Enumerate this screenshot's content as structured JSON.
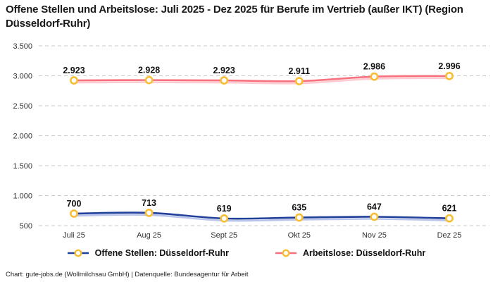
{
  "title": "Offene Stellen und Arbeitslose: Juli 2025 - Dez 2025 für Berufe im Vertrieb (außer IKT) (Region Düsseldorf-Ruhr)",
  "footer": "Chart: gute-jobs.de (Wollmilchsau GmbH) | Datenquelle: Bundesagentur für Arbeit",
  "colors": {
    "open_positions_line": "#21409A",
    "open_positions_shadow": "#B3BFE9",
    "unemployed_line": "#F8717F",
    "unemployed_shadow": "#FCC6CD",
    "marker_ring": "#F7BE33",
    "marker_fill": "#FFFFFF",
    "grid": "#C8C8C8",
    "text": "#1a1a1a"
  },
  "chart_data": {
    "type": "line",
    "categories": [
      "Juli 25",
      "Aug 25",
      "Sept 25",
      "Okt 25",
      "Nov 25",
      "Dez 25"
    ],
    "series": [
      {
        "name": "Offene Stellen: Düsseldorf-Ruhr",
        "values": [
          700,
          713,
          619,
          635,
          647,
          621
        ],
        "labels": [
          "700",
          "713",
          "619",
          "635",
          "647",
          "621"
        ],
        "color": "#21409A",
        "shadow_color": "#B3BFE9"
      },
      {
        "name": "Arbeitslose: Düsseldorf-Ruhr",
        "values": [
          2923,
          2928,
          2923,
          2911,
          2986,
          2996
        ],
        "labels": [
          "2.923",
          "2.928",
          "2.923",
          "2.911",
          "2.986",
          "2.996"
        ],
        "color": "#F8717F",
        "shadow_color": "#FCC6CD"
      }
    ],
    "title": "Offene Stellen und Arbeitslose: Juli 2025 - Dez 2025 für Berufe im Vertrieb (außer IKT) (Region Düsseldorf-Ruhr)",
    "xlabel": "",
    "ylabel": "",
    "ylim": [
      500,
      3500
    ],
    "yticks": [
      {
        "value": 500,
        "label": "500"
      },
      {
        "value": 1000,
        "label": "1.000"
      },
      {
        "value": 1500,
        "label": "1.500"
      },
      {
        "value": 2000,
        "label": "2.000"
      },
      {
        "value": 2500,
        "label": "2.500"
      },
      {
        "value": 3000,
        "label": "3.000"
      },
      {
        "value": 3500,
        "label": "3.500"
      }
    ],
    "grid": true,
    "grid_style": "dashed",
    "legend_position": "bottom",
    "marker": "ring-circle"
  }
}
